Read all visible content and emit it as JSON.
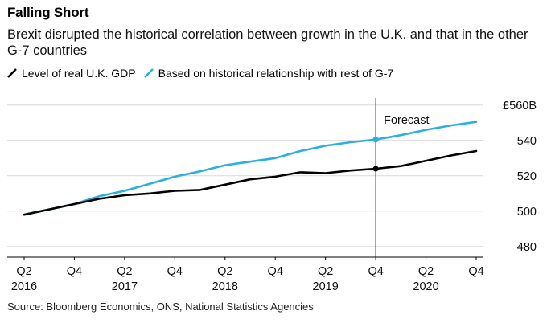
{
  "header": {
    "title": "Falling Short",
    "subtitle": "Brexit disrupted the historical correlation between growth in the U.K. and that in the other G-7 countries"
  },
  "legend": {
    "items": [
      {
        "label": "Level of real U.K. GDP",
        "color": "#000000"
      },
      {
        "label": "Based on historical relationship with rest of G-7",
        "color": "#2ab0e0"
      }
    ]
  },
  "footer": {
    "source": "Source: Bloomberg Economics, ONS, National Statistics Agencies"
  },
  "chart_data": {
    "type": "line",
    "title": "Falling Short",
    "xlabel": "",
    "ylabel": "",
    "ylim": [
      474,
      564
    ],
    "yticks": [
      480,
      500,
      520,
      540,
      560
    ],
    "ytick_labels": [
      "480",
      "500",
      "520",
      "540",
      "£560B"
    ],
    "x": [
      "2016Q2",
      "2016Q3",
      "2016Q4",
      "2017Q1",
      "2017Q2",
      "2017Q3",
      "2017Q4",
      "2018Q1",
      "2018Q2",
      "2018Q3",
      "2018Q4",
      "2019Q1",
      "2019Q2",
      "2019Q3",
      "2019Q4",
      "2020Q1",
      "2020Q2",
      "2020Q3",
      "2020Q4"
    ],
    "xtick_labels": [
      {
        "quarter": "Q2",
        "year": "2016"
      },
      {
        "quarter": "Q4",
        "year": ""
      },
      {
        "quarter": "Q2",
        "year": "2017"
      },
      {
        "quarter": "Q4",
        "year": ""
      },
      {
        "quarter": "Q2",
        "year": "2018"
      },
      {
        "quarter": "Q4",
        "year": ""
      },
      {
        "quarter": "Q2",
        "year": "2019"
      },
      {
        "quarter": "Q4",
        "year": ""
      },
      {
        "quarter": "Q2",
        "year": "2020"
      },
      {
        "quarter": "Q4",
        "year": ""
      }
    ],
    "series": [
      {
        "name": "Level of real U.K. GDP",
        "color": "#000000",
        "values": [
          498,
          501,
          504,
          507,
          509,
          510,
          511.5,
          512,
          515,
          518,
          519.5,
          522,
          521.5,
          523,
          524,
          525.5,
          528.5,
          531.5,
          534
        ]
      },
      {
        "name": "Based on historical relationship with rest of G-7",
        "color": "#2ab0e0",
        "values": [
          498,
          501,
          504,
          508.5,
          511.5,
          515.5,
          519.5,
          522.5,
          526,
          528,
          530,
          534,
          537,
          539,
          540.5,
          543,
          546,
          548.5,
          550.5
        ]
      }
    ],
    "annotations": [
      {
        "text": "Forecast",
        "x": "2019Q4",
        "type": "vertical-line"
      }
    ]
  }
}
